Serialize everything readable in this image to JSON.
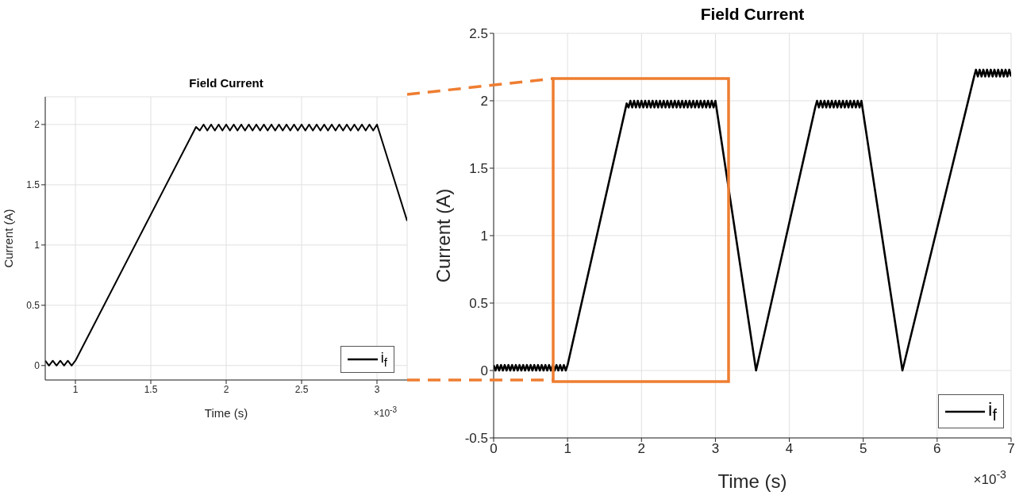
{
  "chart_data": [
    {
      "type": "line",
      "title": "Field Current",
      "xlabel": "Time (s)",
      "ylabel": "Current (A)",
      "annotations": [
        "×10$^{-3}$"
      ],
      "xlim": [
        0.8,
        3.2
      ],
      "xticks": [
        1,
        1.5,
        2,
        2.5,
        3
      ],
      "ylim": [
        -0.12,
        2.23
      ],
      "yticks": [
        0,
        0.5,
        1,
        1.5,
        2
      ],
      "grid": true,
      "legend": "bottom right",
      "x": [
        0.8,
        0.825,
        0.85,
        0.875,
        0.9,
        0.925,
        0.95,
        0.975,
        1.0,
        1.8,
        1.825,
        1.85,
        1.875,
        1.9,
        1.925,
        1.95,
        1.975,
        2.0,
        2.025,
        2.05,
        2.075,
        2.1,
        2.125,
        2.15,
        2.175,
        2.2,
        2.225,
        2.25,
        2.275,
        2.3,
        2.325,
        2.35,
        2.375,
        2.4,
        2.425,
        2.45,
        2.475,
        2.5,
        2.525,
        2.55,
        2.575,
        2.6,
        2.625,
        2.65,
        2.675,
        2.7,
        2.725,
        2.75,
        2.775,
        2.8,
        2.825,
        2.85,
        2.875,
        2.9,
        2.925,
        2.95,
        2.975,
        3.0,
        3.2
      ],
      "series": [
        {
          "name": "i$_{f}$",
          "color": "#000000",
          "values": [
            0.04,
            0,
            0.04,
            0,
            0.04,
            0,
            0.04,
            0,
            0.04,
            1.98,
            1.95,
            2.0,
            1.95,
            2.0,
            1.95,
            2.0,
            1.95,
            2.0,
            1.95,
            2.0,
            1.95,
            2.0,
            1.95,
            2.0,
            1.95,
            2.0,
            1.95,
            2.0,
            1.95,
            2.0,
            1.95,
            2.0,
            1.95,
            2.0,
            1.95,
            2.0,
            1.95,
            2.0,
            1.95,
            2.0,
            1.95,
            2.0,
            1.95,
            2.0,
            1.95,
            2.0,
            1.95,
            2.0,
            1.95,
            2.0,
            1.95,
            2.0,
            1.95,
            2.0,
            1.95,
            2.0,
            1.95,
            2.0,
            1.2
          ]
        }
      ]
    },
    {
      "type": "line",
      "title": "Field Current",
      "xlabel": "Time (s)",
      "ylabel": "Current (A)",
      "annotations": [
        "×10$^{-3}$"
      ],
      "xlim": [
        0,
        7
      ],
      "xticks": [
        0,
        1,
        2,
        3,
        4,
        5,
        6,
        7
      ],
      "ylim": [
        -0.5,
        2.5
      ],
      "yticks": [
        -0.5,
        0,
        0.5,
        1,
        1.5,
        2,
        2.5
      ],
      "grid": true,
      "legend": "bottom right",
      "x": [
        0,
        0.025,
        0.05,
        0.075,
        0.1,
        0.125,
        0.15,
        0.175,
        0.2,
        0.225,
        0.25,
        0.275,
        0.3,
        0.325,
        0.35,
        0.375,
        0.4,
        0.425,
        0.45,
        0.475,
        0.5,
        0.525,
        0.55,
        0.575,
        0.6,
        0.625,
        0.65,
        0.675,
        0.7,
        0.725,
        0.75,
        0.775,
        0.8,
        0.825,
        0.85,
        0.875,
        0.9,
        0.925,
        0.95,
        0.975,
        1.0,
        1.8,
        1.825,
        1.85,
        1.875,
        1.9,
        1.925,
        1.95,
        1.975,
        2.0,
        2.025,
        2.05,
        2.075,
        2.1,
        2.125,
        2.15,
        2.175,
        2.2,
        2.225,
        2.25,
        2.275,
        2.3,
        2.325,
        2.35,
        2.375,
        2.4,
        2.425,
        2.45,
        2.475,
        2.5,
        2.525,
        2.55,
        2.575,
        2.6,
        2.625,
        2.65,
        2.675,
        2.7,
        2.725,
        2.75,
        2.775,
        2.8,
        2.825,
        2.85,
        2.875,
        2.9,
        2.925,
        2.95,
        2.975,
        3.0,
        3.55,
        4.35,
        4.375,
        4.4,
        4.425,
        4.45,
        4.475,
        4.5,
        4.525,
        4.55,
        4.575,
        4.6,
        4.625,
        4.65,
        4.675,
        4.7,
        4.725,
        4.75,
        4.775,
        4.8,
        4.825,
        4.85,
        4.875,
        4.9,
        4.925,
        4.95,
        4.975,
        5.53,
        6.5,
        6.525,
        6.55,
        6.575,
        6.6,
        6.625,
        6.65,
        6.675,
        6.7,
        6.725,
        6.75,
        6.775,
        6.8,
        6.825,
        6.85,
        6.875,
        6.9,
        6.925,
        6.95,
        6.975,
        7.0
      ],
      "series": [
        {
          "name": "i$_{f}$",
          "color": "#000000",
          "values": [
            0.04,
            0,
            0.04,
            0,
            0.04,
            0,
            0.04,
            0,
            0.04,
            0,
            0.04,
            0,
            0.04,
            0,
            0.04,
            0,
            0.04,
            0,
            0.04,
            0,
            0.04,
            0,
            0.04,
            0,
            0.04,
            0,
            0.04,
            0,
            0.04,
            0,
            0.04,
            0,
            0.04,
            0,
            0.04,
            0,
            0.04,
            0,
            0.04,
            0,
            0.04,
            1.98,
            1.95,
            2.0,
            1.95,
            2.0,
            1.95,
            2.0,
            1.95,
            2.0,
            1.95,
            2.0,
            1.95,
            2.0,
            1.95,
            2.0,
            1.95,
            2.0,
            1.95,
            2.0,
            1.95,
            2.0,
            1.95,
            2.0,
            1.95,
            2.0,
            1.95,
            2.0,
            1.95,
            2.0,
            1.95,
            2.0,
            1.95,
            2.0,
            1.95,
            2.0,
            1.95,
            2.0,
            1.95,
            2.0,
            1.95,
            2.0,
            1.95,
            2.0,
            1.95,
            2.0,
            1.95,
            2.0,
            1.95,
            2.0,
            0,
            1.95,
            2.0,
            1.95,
            2.0,
            1.95,
            2.0,
            1.95,
            2.0,
            1.95,
            2.0,
            1.95,
            2.0,
            1.95,
            2.0,
            1.95,
            2.0,
            1.95,
            2.0,
            1.95,
            2.0,
            1.95,
            2.0,
            1.95,
            2.0,
            1.95,
            2.0,
            0,
            2.18,
            2.23,
            2.18,
            2.23,
            2.18,
            2.23,
            2.18,
            2.23,
            2.18,
            2.23,
            2.18,
            2.23,
            2.18,
            2.23,
            2.18,
            2.23,
            2.18,
            2.23,
            2.18,
            2.23,
            2.18
          ]
        }
      ]
    }
  ]
}
